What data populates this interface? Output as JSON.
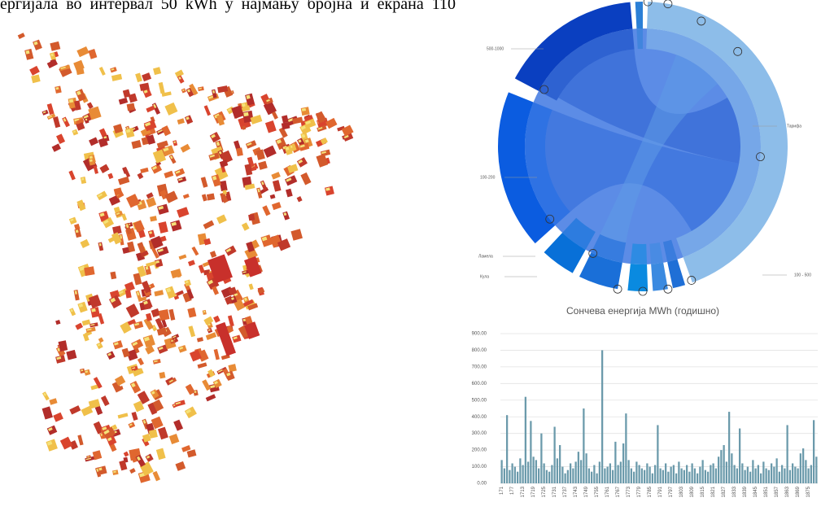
{
  "header": {
    "text": "ергијала  во  интервал  50  kWh  у  најмању  бројна  и  екрана  110"
  },
  "chord": {
    "labels": [
      "500-1000",
      "Тарифа",
      "100-200",
      "Ламела",
      "Кула",
      "100 - 500"
    ]
  },
  "chart_data": {
    "type": "bar",
    "title": "Сончева енергија MWh (годишно)",
    "color": "#6b9aab",
    "grid": true,
    "ylim": [
      0,
      900
    ],
    "yticks": [
      {
        "value": 0,
        "label": "0.00"
      },
      {
        "value": 100,
        "label": "100.00"
      },
      {
        "value": 200,
        "label": "200.00"
      },
      {
        "value": 300,
        "label": "300.00"
      },
      {
        "value": 400,
        "label": "400.00"
      },
      {
        "value": 500,
        "label": "500.00"
      },
      {
        "value": 600,
        "label": "600.00"
      },
      {
        "value": 700,
        "label": "700.00"
      },
      {
        "value": 800,
        "label": "800.00"
      },
      {
        "value": 900,
        "label": "900.00"
      }
    ],
    "categories": [
      "171",
      null,
      null,
      null,
      "177",
      null,
      null,
      null,
      "1713",
      null,
      null,
      null,
      "1719",
      null,
      null,
      null,
      "1725",
      null,
      null,
      null,
      "1731",
      null,
      null,
      null,
      "1737",
      null,
      null,
      null,
      "1743",
      null,
      null,
      null,
      "1749",
      null,
      null,
      null,
      "1755",
      null,
      null,
      null,
      "1761",
      null,
      null,
      null,
      "1767",
      null,
      null,
      null,
      "1773",
      null,
      null,
      null,
      "1779",
      null,
      null,
      null,
      "1785",
      null,
      null,
      null,
      "1791",
      null,
      null,
      null,
      "1797",
      null,
      null,
      null,
      "1803",
      null,
      null,
      null,
      "1809",
      null,
      null,
      null,
      "1815",
      null,
      null,
      null,
      "1821",
      null,
      null,
      null,
      "1827",
      null,
      null,
      null,
      "1833",
      null,
      null,
      null,
      "1839",
      null,
      null,
      null,
      "1845",
      null,
      null,
      null,
      "1851",
      null,
      null,
      null,
      "1857",
      null,
      null,
      null,
      "1863",
      null,
      null,
      null,
      "1869",
      null,
      null,
      null,
      "1875",
      null,
      null,
      null
    ],
    "values": [
      140,
      90,
      410,
      80,
      120,
      100,
      70,
      150,
      110,
      520,
      130,
      375,
      160,
      140,
      90,
      300,
      120,
      80,
      70,
      110,
      340,
      150,
      230,
      100,
      60,
      80,
      120,
      90,
      130,
      190,
      140,
      450,
      180,
      90,
      70,
      110,
      60,
      130,
      800,
      90,
      100,
      120,
      80,
      250,
      110,
      130,
      240,
      420,
      140,
      90,
      70,
      130,
      110,
      90,
      80,
      120,
      100,
      60,
      110,
      350,
      90,
      80,
      120,
      70,
      100,
      110,
      60,
      130,
      90,
      80,
      110,
      70,
      120,
      90,
      60,
      100,
      140,
      80,
      70,
      110,
      120,
      90,
      160,
      200,
      230,
      130,
      430,
      180,
      110,
      90,
      330,
      120,
      80,
      100,
      70,
      140,
      90,
      110,
      60,
      130,
      90,
      80,
      120,
      100,
      150,
      70,
      110,
      90,
      350,
      80,
      120,
      100,
      90,
      180,
      210,
      140,
      90,
      110,
      380,
      160
    ]
  }
}
